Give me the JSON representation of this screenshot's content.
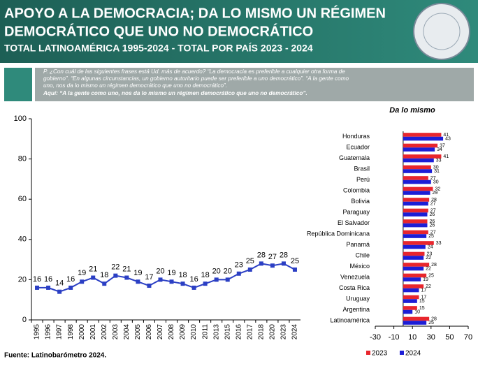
{
  "header": {
    "title_lines": [
      "APOYO A LA DEMOCRACIA; DA LO MISMO UN RÉGIMEN",
      "DEMOCRÁTICO QUE UNO NO DEMOCRÁTICO"
    ],
    "subtitle": "TOTAL LATINOAMÉRICA 1995-2024 - TOTAL POR PAÍS 2023 - 2024"
  },
  "question": {
    "lines": [
      "P. ¿Con cuál de las siguientes frases está Ud. más de acuerdo? “La democracia es preferible a cualquier otra forma de",
      "gobierno”. “En algunas circunstancias, un gobierno autoritario puede ser preferible a uno democrático”. “A la gente como",
      "uno, nos da lo mismo un régimen democrático que uno no democrático”.",
      "Aquí: “A la gente como uno, nos da lo mismo un régimen democrático que uno no democrático”."
    ]
  },
  "source": "Fuente: Latinobarómetro 2024.",
  "chart_data": [
    {
      "type": "line",
      "categories": [
        "1995",
        "1996",
        "1997",
        "1998",
        "2000",
        "2001",
        "2002",
        "2003",
        "2004",
        "2005",
        "2006",
        "2007",
        "2008",
        "2009",
        "2010",
        "2011",
        "2013",
        "2015",
        "2016",
        "2017",
        "2018",
        "2020",
        "2023",
        "2024"
      ],
      "values": [
        16,
        16,
        14,
        16,
        19,
        21,
        18,
        22,
        21,
        19,
        17,
        20,
        19,
        18,
        16,
        18,
        20,
        20,
        23,
        25,
        28,
        27,
        28,
        25
      ],
      "color": "#2b3fc4",
      "ylim": [
        0,
        100
      ],
      "yticks": [
        0,
        20,
        40,
        60,
        80,
        100
      ]
    },
    {
      "type": "hbar",
      "title": "Da lo mismo",
      "categories": [
        "Honduras",
        "Ecuador",
        "Guatemala",
        "Brasil",
        "Perú",
        "Colombia",
        "Bolivia",
        "Paraguay",
        "El Salvador",
        "República Dominicana",
        "Panamá",
        "Chile",
        "México",
        "Venezuela",
        "Costa Rica",
        "Uruguay",
        "Argentina",
        "Latinoamérica"
      ],
      "series": [
        {
          "name": "2023",
          "color": "#e8262d",
          "values": [
            41,
            37,
            41,
            30,
            27,
            32,
            28,
            27,
            26,
            27,
            33,
            23,
            28,
            25,
            22,
            17,
            15,
            28
          ]
        },
        {
          "name": "2024",
          "color": "#1c1ed6",
          "values": [
            43,
            34,
            33,
            31,
            30,
            29,
            27,
            26,
            26,
            25,
            24,
            22,
            22,
            19,
            17,
            15,
            10,
            25
          ]
        }
      ],
      "xlim": [
        -30,
        70
      ],
      "xticks": [
        -30,
        -10,
        10,
        30,
        50,
        70
      ]
    }
  ]
}
